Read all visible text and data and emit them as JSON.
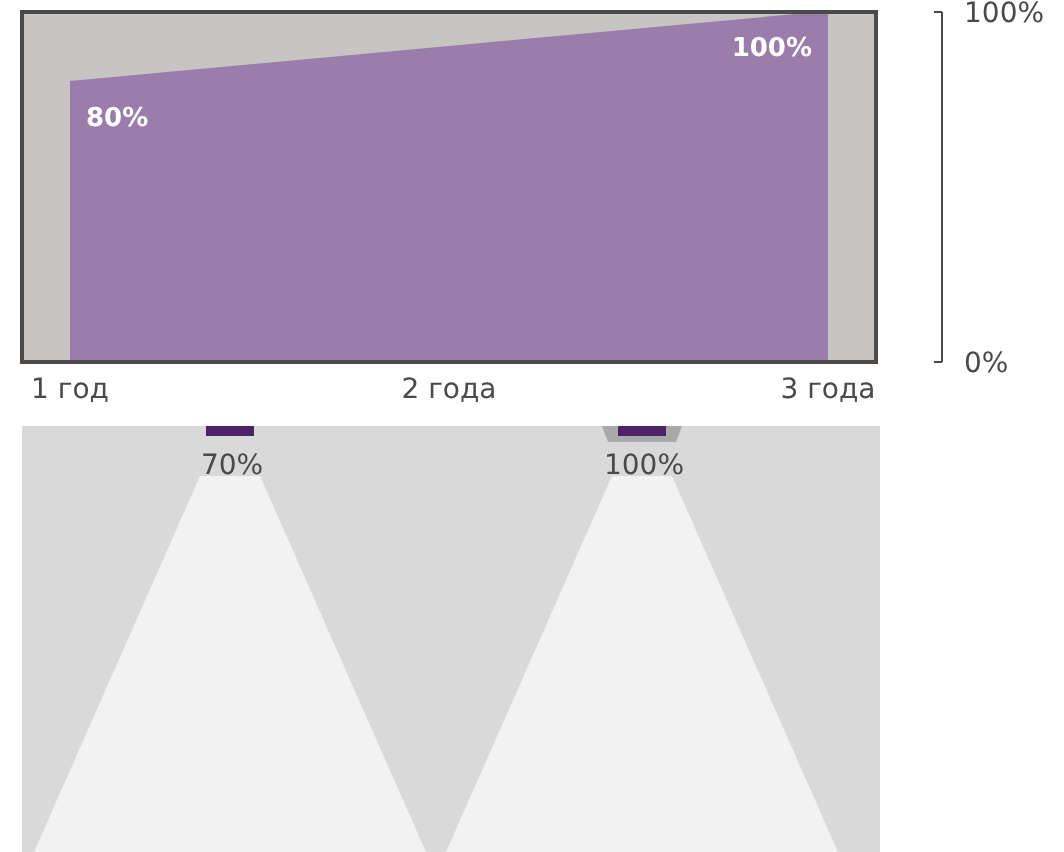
{
  "chart_data": {
    "type": "area",
    "categories": [
      "1 год",
      "2 года",
      "3 года"
    ],
    "series": [
      {
        "color": "#9a7dab",
        "values": [
          80,
          90,
          100
        ],
        "value_labels": [
          "80%",
          null,
          "100%"
        ]
      }
    ],
    "ylim": [
      0,
      100
    ],
    "yticks": [
      {
        "value": 0,
        "label": "0%"
      },
      {
        "value": 100,
        "label": "100%"
      }
    ],
    "annotations": [
      "70%",
      "100%"
    ]
  }
}
